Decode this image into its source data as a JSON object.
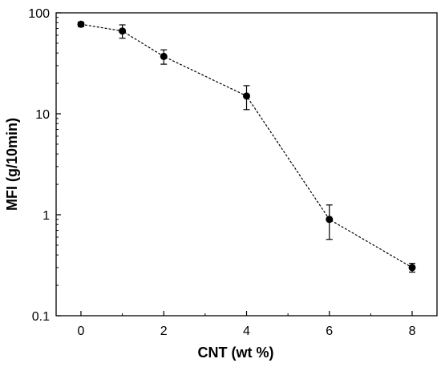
{
  "chart_data": {
    "type": "line",
    "title": "",
    "xlabel": "CNT (wt %)",
    "ylabel": "MFI (g/10min)",
    "xlim": [
      -0.6,
      8.6
    ],
    "ylim": [
      0.1,
      100
    ],
    "y_scale": "log",
    "x_ticks": [
      0,
      2,
      4,
      6,
      8
    ],
    "x_tick_labels": [
      "0",
      "2",
      "4",
      "6",
      "8"
    ],
    "y_ticks": [
      0.1,
      1,
      10,
      100
    ],
    "y_tick_labels": [
      "0.1",
      "1",
      "10",
      "100"
    ],
    "grid": false,
    "legend": "none",
    "line_style": "dashed",
    "marker": "filled-circle",
    "color": "#000000",
    "series": [
      {
        "x": [
          0,
          1,
          2,
          4,
          6,
          8
        ],
        "y": [
          77,
          66,
          37,
          15,
          0.9,
          0.3
        ],
        "y_err_low": [
          73,
          56,
          31,
          11,
          0.57,
          0.27
        ],
        "y_err_high": [
          81,
          76,
          43,
          19,
          1.25,
          0.33
        ]
      }
    ]
  }
}
